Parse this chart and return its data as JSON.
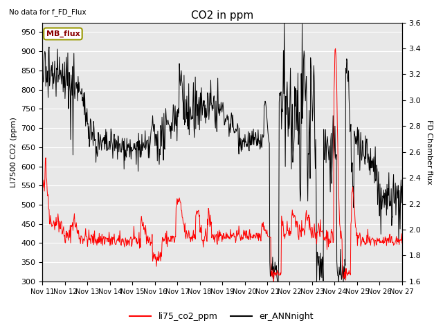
{
  "title": "CO2 in ppm",
  "subtitle": "No data for f_FD_Flux",
  "ylabel_left": "LI7500 CO2 (ppm)",
  "ylabel_right": "FD Chamber flux",
  "ylim_left": [
    300,
    975
  ],
  "ylim_right": [
    1.6,
    3.6
  ],
  "yticks_left": [
    300,
    350,
    400,
    450,
    500,
    550,
    600,
    650,
    700,
    750,
    800,
    850,
    900,
    950
  ],
  "yticks_right": [
    1.6,
    1.8,
    2.0,
    2.2,
    2.4,
    2.6,
    2.8,
    3.0,
    3.2,
    3.4,
    3.6
  ],
  "xtick_labels": [
    "Nov 11",
    "Nov 12",
    "Nov 13",
    "Nov 14",
    "Nov 15",
    "Nov 16",
    "Nov 17",
    "Nov 18",
    "Nov 19",
    "Nov 20",
    "Nov 21",
    "Nov 22",
    "Nov 23",
    "Nov 24",
    "Nov 25",
    "Nov 26",
    "Nov 27"
  ],
  "legend_label1": "li75_co2_ppm",
  "legend_label2": "er_ANNnight",
  "legend_box_label": "MB_flux",
  "line1_color": "#ff0000",
  "line2_color": "#000000",
  "background_color": "#ffffff",
  "plot_bg_color": "#e8e8e8",
  "grid_color": "#ffffff",
  "seed": 42
}
